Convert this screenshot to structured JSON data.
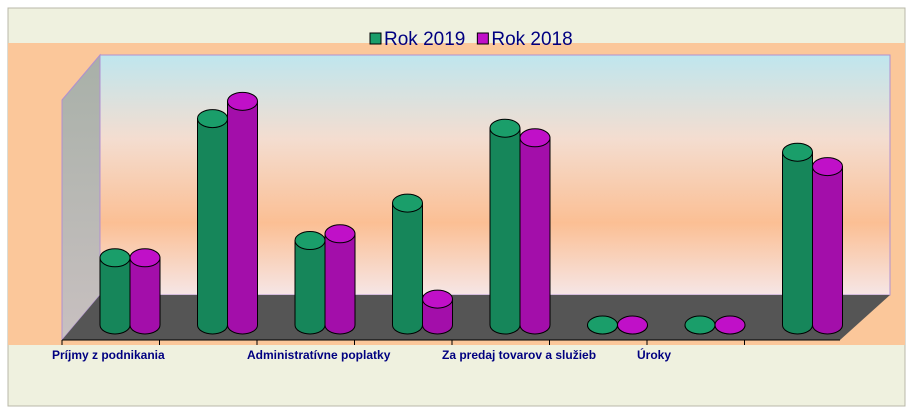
{
  "chart_data": {
    "type": "bar3d",
    "categories": [
      "Príjmy z podnikania",
      null,
      "Administratívne poplatky",
      null,
      "Za predaj tovarov a služieb",
      null,
      "Úroky",
      null
    ],
    "series": [
      {
        "name": "Rok 2019",
        "color": "#1a9e6a",
        "values": [
          70,
          215,
          88,
          127,
          205,
          0,
          0,
          180
        ]
      },
      {
        "name": "Rok 2018",
        "color": "#c010c8",
        "values": [
          70,
          233,
          95,
          27,
          195,
          0,
          0,
          165
        ]
      }
    ],
    "ylim": [
      0,
      250
    ]
  }
}
